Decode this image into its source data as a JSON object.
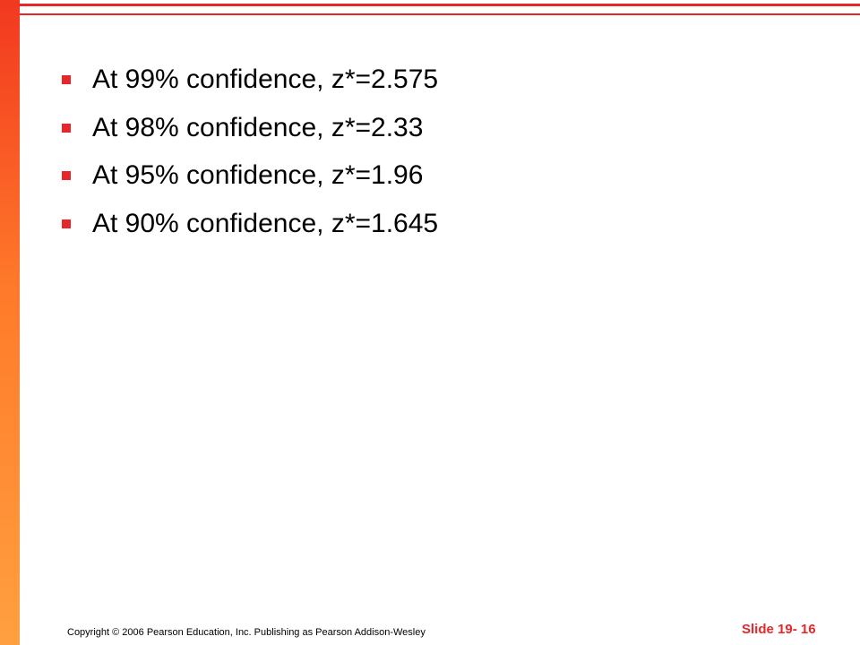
{
  "bullets": [
    "At 99% confidence, z*=2.575",
    "At 98% confidence, z*=2.33",
    "At 95% confidence, z*=1.96",
    "At 90% confidence, z*=1.645"
  ],
  "footer": {
    "copyright": "Copyright © 2006 Pearson Education, Inc. Publishing as Pearson Addison-Wesley",
    "slide_number": "Slide 19- 16"
  }
}
